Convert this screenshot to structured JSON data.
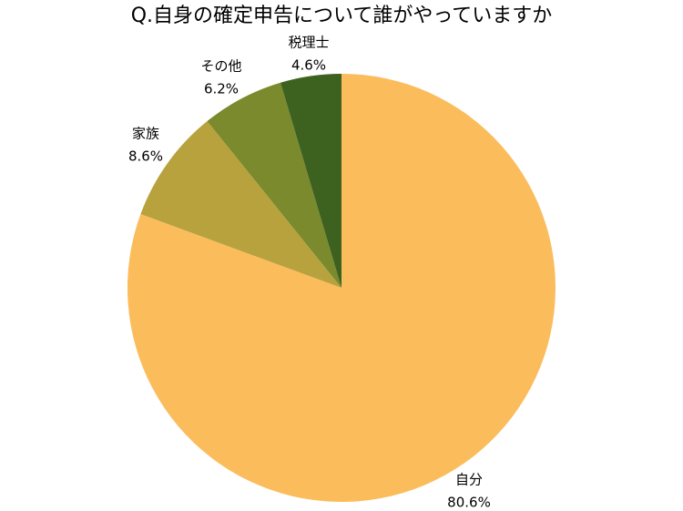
{
  "chart_data": {
    "type": "pie",
    "title": "Q.自身の確定申告について誰がやっていますか",
    "categories": [
      "自分",
      "家族",
      "その他",
      "税理士"
    ],
    "values": [
      80.6,
      8.6,
      6.2,
      4.6
    ],
    "value_labels": [
      "80.6%",
      "8.6%",
      "6.2%",
      "4.6%"
    ],
    "colors": [
      "#fbbc5c",
      "#b8a23d",
      "#7b8a2c",
      "#3d6220"
    ]
  }
}
